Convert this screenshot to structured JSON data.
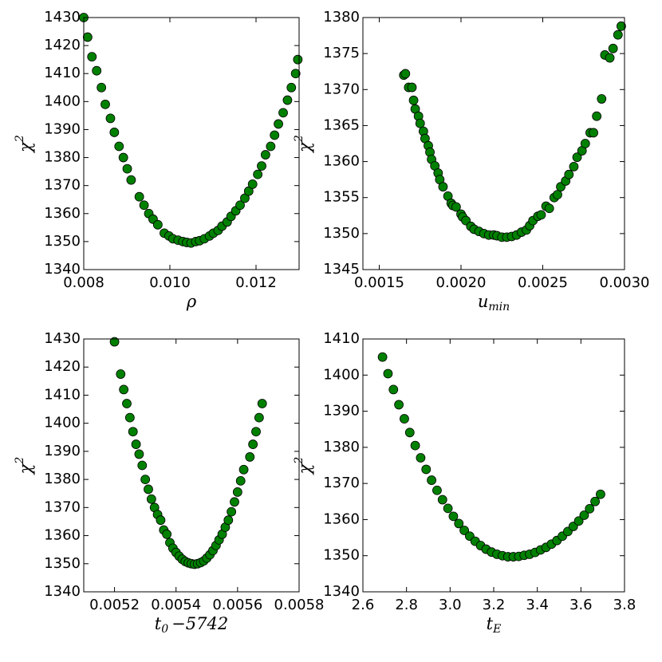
{
  "chart_data": [
    {
      "type": "scatter",
      "color": "green",
      "edgecolor": "black",
      "xlabel": [
        {
          "text": "ρ"
        }
      ],
      "ylabel": [
        {
          "text": "χ"
        },
        {
          "text": "2",
          "sup": true
        }
      ],
      "xlim": [
        0.008,
        0.013
      ],
      "ylim": [
        1340,
        1430
      ],
      "xticks": [
        0.008,
        {
          "value": 0.01,
          "label": "0.010"
        },
        0.012
      ],
      "yticks": [
        1340,
        1350,
        1360,
        1370,
        1380,
        1390,
        1400,
        1410,
        1420,
        1430
      ],
      "x": [
        0.008,
        0.00809,
        0.00819,
        0.0083,
        0.00841,
        0.0085,
        0.00862,
        0.00871,
        0.00882,
        0.00892,
        0.00901,
        0.0091,
        0.00929,
        0.0094,
        0.00951,
        0.00961,
        0.00972,
        0.00987,
        0.00998,
        0.01007,
        0.01019,
        0.0103,
        0.01039,
        0.01049,
        0.0106,
        0.01069,
        0.0108,
        0.01092,
        0.01101,
        0.01112,
        0.01121,
        0.01133,
        0.01142,
        0.01153,
        0.01163,
        0.01174,
        0.01183,
        0.01192,
        0.01204,
        0.01213,
        0.01222,
        0.01234,
        0.01243,
        0.01252,
        0.01263,
        0.01273,
        0.01282,
        0.01292,
        0.01297
      ],
      "values": [
        1430,
        1423,
        1416,
        1411,
        1405,
        1399,
        1394,
        1389,
        1384,
        1380,
        1376,
        1372,
        1366,
        1363,
        1360,
        1358,
        1356,
        1353,
        1352,
        1351,
        1350.5,
        1350,
        1349.7,
        1349.5,
        1350,
        1350.3,
        1351,
        1352,
        1353,
        1354,
        1355.5,
        1357,
        1359,
        1361,
        1363,
        1365.5,
        1368,
        1370.5,
        1374,
        1377,
        1381,
        1384,
        1388,
        1392,
        1396,
        1400.5,
        1405,
        1410,
        1415
      ]
    },
    {
      "type": "scatter",
      "color": "green",
      "edgecolor": "black",
      "xlabel": [
        {
          "text": "u"
        },
        {
          "text": "min",
          "sub": true
        }
      ],
      "ylabel": [
        {
          "text": "χ"
        },
        {
          "text": "2",
          "sup": true
        }
      ],
      "xlim": [
        0.0014,
        0.003
      ],
      "ylim": [
        1345,
        1380
      ],
      "xticks": [
        0.0015,
        {
          "value": 0.002,
          "label": "0.0020"
        },
        0.0025,
        {
          "value": 0.003,
          "label": "0.0030"
        }
      ],
      "yticks": [
        1345,
        1350,
        1355,
        1360,
        1365,
        1370,
        1375,
        1380
      ],
      "x": [
        0.00165,
        0.00166,
        0.00168,
        0.0017,
        0.00171,
        0.00172,
        0.00174,
        0.00175,
        0.00177,
        0.00178,
        0.0018,
        0.00181,
        0.00182,
        0.00184,
        0.00186,
        0.00187,
        0.00189,
        0.00192,
        0.00194,
        0.00195,
        0.00197,
        0.002,
        0.00201,
        0.00203,
        0.00206,
        0.00208,
        0.00211,
        0.00214,
        0.00217,
        0.0022,
        0.00222,
        0.00225,
        0.00228,
        0.00231,
        0.00234,
        0.00237,
        0.0024,
        0.00242,
        0.00244,
        0.00247,
        0.00249,
        0.00252,
        0.00254,
        0.00257,
        0.00259,
        0.00261,
        0.00264,
        0.00266,
        0.00269,
        0.00271,
        0.00274,
        0.00276,
        0.00279,
        0.00281,
        0.00283,
        0.00286,
        0.00288,
        0.00291,
        0.00293,
        0.00296,
        0.00298
      ],
      "values": [
        1372,
        1372.2,
        1370.3,
        1370.3,
        1368.5,
        1367.3,
        1366.3,
        1365.3,
        1364.2,
        1363.2,
        1362.2,
        1361.3,
        1360.3,
        1359.4,
        1358.4,
        1357.5,
        1356.5,
        1355.2,
        1354.2,
        1353.9,
        1353.7,
        1352.7,
        1352.3,
        1351.8,
        1351,
        1350.6,
        1350.3,
        1350,
        1349.8,
        1349.8,
        1349.7,
        1349.5,
        1349.5,
        1349.6,
        1349.8,
        1350.2,
        1350.5,
        1351.1,
        1351.8,
        1352.4,
        1352.6,
        1353.8,
        1353.5,
        1355,
        1355.4,
        1356.5,
        1357.3,
        1358.2,
        1359.3,
        1360.6,
        1361.5,
        1362.5,
        1364,
        1364,
        1366.3,
        1368.7,
        1374.8,
        1374.4,
        1375.7,
        1377.6,
        1378.8
      ]
    },
    {
      "type": "scatter",
      "color": "green",
      "edgecolor": "black",
      "xlabel": [
        {
          "text": "t"
        },
        {
          "text": "0",
          "sub": true
        },
        {
          "text": "−5742"
        }
      ],
      "ylabel": [
        {
          "text": "χ"
        },
        {
          "text": "2",
          "sup": true
        }
      ],
      "xlim": [
        0.0051,
        0.0058
      ],
      "ylim": [
        1340,
        1430
      ],
      "xticks": [
        0.0052,
        0.0054,
        0.0056,
        0.0058
      ],
      "yticks": [
        1340,
        1350,
        1360,
        1370,
        1380,
        1390,
        1400,
        1410,
        1420,
        1430
      ],
      "x": [
        0.0052,
        0.00522,
        0.00523,
        0.00524,
        0.00525,
        0.00526,
        0.00527,
        0.00528,
        0.00529,
        0.0053,
        0.00531,
        0.00532,
        0.00533,
        0.00534,
        0.00535,
        0.00536,
        0.00537,
        0.00538,
        0.00539,
        0.0054,
        0.00541,
        0.00542,
        0.00543,
        0.00544,
        0.00545,
        0.00546,
        0.00547,
        0.00548,
        0.00549,
        0.0055,
        0.00551,
        0.00552,
        0.00553,
        0.00554,
        0.00555,
        0.00556,
        0.00557,
        0.00558,
        0.00559,
        0.0056,
        0.00561,
        0.00562,
        0.00564,
        0.00565,
        0.00566,
        0.00567,
        0.00568
      ],
      "values": [
        1429,
        1417.5,
        1412,
        1407,
        1402,
        1397,
        1392.5,
        1389,
        1385,
        1380,
        1376.5,
        1373,
        1370,
        1367.5,
        1365.5,
        1362,
        1360.5,
        1357.5,
        1355.5,
        1354,
        1352.7,
        1351.6,
        1350.8,
        1350.3,
        1350,
        1349.8,
        1350,
        1350.4,
        1351,
        1352,
        1353.2,
        1354.7,
        1356.5,
        1358.5,
        1360.5,
        1363,
        1365.5,
        1368.5,
        1372,
        1375.5,
        1379.5,
        1383.5,
        1388,
        1392.5,
        1397,
        1402,
        1407
      ]
    },
    {
      "type": "scatter",
      "color": "green",
      "edgecolor": "black",
      "xlabel": [
        {
          "text": "t"
        },
        {
          "text": "E",
          "sub": true
        }
      ],
      "ylabel": [
        {
          "text": "χ"
        },
        {
          "text": "2",
          "sup": true
        }
      ],
      "xlim": [
        2.6,
        3.8
      ],
      "ylim": [
        1340,
        1410
      ],
      "xticks": [
        2.6,
        2.8,
        {
          "value": 3,
          "label": "3.0"
        },
        3.2,
        3.4,
        3.6,
        3.8
      ],
      "yticks": [
        1340,
        1350,
        1360,
        1370,
        1380,
        1390,
        1400,
        1410
      ],
      "x": [
        2.69,
        2.715,
        2.74,
        2.765,
        2.79,
        2.815,
        2.84,
        2.865,
        2.89,
        2.915,
        2.94,
        2.965,
        2.99,
        3.015,
        3.04,
        3.065,
        3.09,
        3.115,
        3.14,
        3.165,
        3.19,
        3.215,
        3.24,
        3.265,
        3.29,
        3.315,
        3.34,
        3.365,
        3.39,
        3.415,
        3.44,
        3.465,
        3.49,
        3.515,
        3.54,
        3.565,
        3.59,
        3.615,
        3.64,
        3.665,
        3.69
      ],
      "values": [
        1405,
        1400.4,
        1396,
        1391.8,
        1387.9,
        1384.1,
        1380.5,
        1377.1,
        1373.9,
        1370.9,
        1368.1,
        1365.5,
        1363.1,
        1360.9,
        1358.9,
        1357,
        1355.4,
        1354,
        1352.8,
        1351.8,
        1351,
        1350.4,
        1350,
        1349.7,
        1349.7,
        1349.8,
        1350.1,
        1350.4,
        1350.9,
        1351.6,
        1352.3,
        1353.2,
        1354.2,
        1355.4,
        1356.7,
        1358.1,
        1359.6,
        1361.2,
        1363,
        1365,
        1367
      ]
    }
  ]
}
